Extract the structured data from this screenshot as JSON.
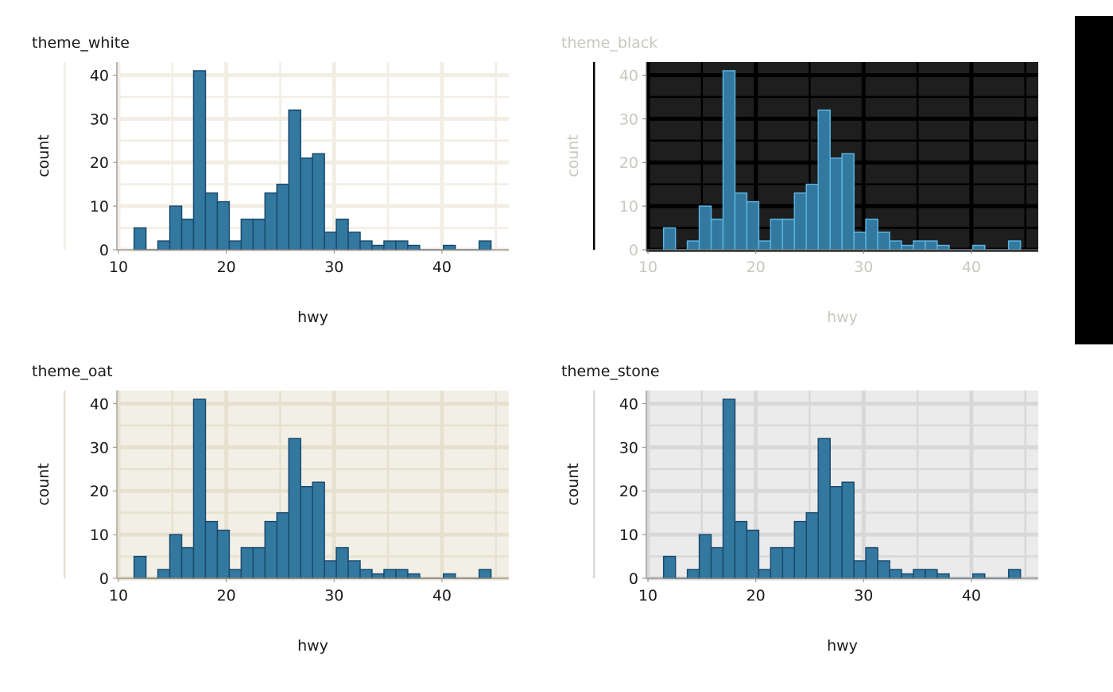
{
  "chart_data": [
    {
      "type": "bar",
      "title": "theme_white",
      "xlabel": "hwy",
      "ylabel": "count",
      "theme": {
        "bg": "#ffffff",
        "panel": "#ffffff",
        "grid": "#f2eee4",
        "text": "#1a1a1a",
        "axis": "#8c8c8c",
        "fill": "#33789f",
        "stroke": "#1b4a6e"
      }
    },
    {
      "type": "bar",
      "title": "theme_black",
      "xlabel": "hwy",
      "ylabel": "count",
      "theme": {
        "bg": "#000000",
        "panel": "#1e1e1e",
        "grid": "#000000",
        "text": "#c8c8c0",
        "axis": "#777777",
        "fill": "#33789f",
        "stroke": "#5ab4e0"
      }
    },
    {
      "type": "bar",
      "title": "theme_oat",
      "xlabel": "hwy",
      "ylabel": "count",
      "theme": {
        "bg": "#ffffff",
        "panel": "#f2f0e6",
        "grid": "#e6e1cf",
        "text": "#1a1a1a",
        "axis": "#999488",
        "fill": "#33789f",
        "stroke": "#1b4a6e"
      }
    },
    {
      "type": "bar",
      "title": "theme_stone",
      "xlabel": "hwy",
      "ylabel": "count",
      "theme": {
        "bg": "#ffffff",
        "panel": "#ebebeb",
        "grid": "#d8d8d8",
        "text": "#1a1a1a",
        "axis": "#8c8c8c",
        "fill": "#33789f",
        "stroke": "#1b4a6e"
      }
    }
  ],
  "histogram": {
    "bin_min_center": 12,
    "bin_max_center": 44,
    "counts": [
      5,
      0,
      2,
      10,
      7,
      41,
      13,
      11,
      2,
      7,
      7,
      13,
      15,
      32,
      21,
      22,
      4,
      7,
      4,
      2,
      1,
      2,
      2,
      1,
      0,
      0,
      1,
      0,
      0,
      2
    ],
    "xlim": [
      9.85,
      46.2
    ],
    "ylim": [
      0,
      43
    ],
    "xticks": [
      10,
      20,
      30,
      40
    ],
    "yticks": [
      0,
      10,
      20,
      30,
      40
    ]
  }
}
